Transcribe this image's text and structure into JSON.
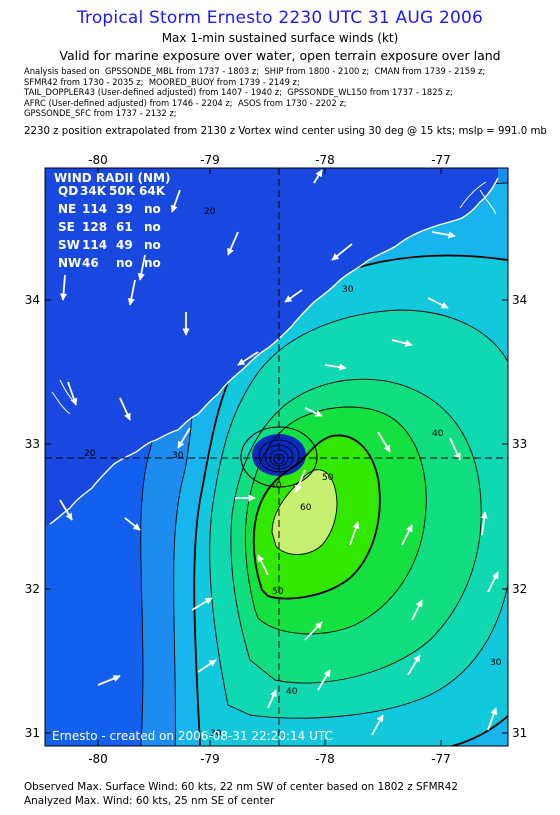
{
  "header": {
    "title": "Tropical Storm Ernesto 2230 UTC 31 AUG 2006",
    "subtitle1": "Max 1-min sustained surface winds (kt)",
    "subtitle2": "Valid for marine exposure over water, open terrain exposure over land"
  },
  "analysis": {
    "line1": "Analysis based on  GPSSONDE_MBL from 1737 - 1803 z;  SHIP from 1800 - 2100 z;  CMAN from 1739 - 2159 z;",
    "line2": "SFMR42 from 1730 - 2035 z;  MOORED_BUOY from 1739 - 2149 z;",
    "line3": "TAIL_DOPPLER43 (User-defined adjusted) from 1407 - 1940 z;  GPSSONDE_WL150 from 1737 - 1825 z;",
    "line4": "AFRC (User-defined adjusted) from 1746 - 2204 z;  ASOS from 1730 - 2202 z;",
    "line5": "GPSSONDE_SFC from 1737 - 2132 z;"
  },
  "position_line": "2230 z position extrapolated from 2130 z Vortex wind center using 30 deg @ 15 kts; mslp = 991.0 mb",
  "map": {
    "lon_ticks": [
      "-80",
      "-79",
      "-78",
      "-77"
    ],
    "lat_ticks": [
      "34",
      "33",
      "32",
      "31"
    ],
    "contour_labels": [
      "20",
      "30",
      "40",
      "30",
      "20",
      "30",
      "40",
      "50",
      "50",
      "60",
      "40",
      "30"
    ],
    "wind_radii": {
      "title": "WIND RADII (NM)",
      "header": [
        "QD",
        "34K",
        "50K",
        "64K"
      ],
      "rows": [
        [
          "NE",
          "114",
          "39",
          "no"
        ],
        [
          "SE",
          "128",
          "61",
          "no"
        ],
        [
          "SW",
          "114",
          "49",
          "no"
        ],
        [
          "NW",
          "46",
          "no",
          "no"
        ]
      ]
    },
    "credit": "Ernesto - created on 2006-08-31 22:20:14 UTC",
    "colors": {
      "band_15": "#1460ee",
      "band_20": "#1c8cf0",
      "band_25": "#18b4ee",
      "band_30": "#12c8dc",
      "band_35": "#10d8b0",
      "band_40": "#10de80",
      "band_45": "#14e040",
      "band_50": "#30e800",
      "band_60": "#c8f070",
      "land": "#1848e0",
      "center": "#0a2abc"
    }
  },
  "footer": {
    "line1": "Observed Max. Surface Wind: 60 kts, 22 nm SW of center based on 1802 z SFMR42",
    "line2": "Analyzed Max. Wind: 60 kts, 25 nm SE of center"
  }
}
